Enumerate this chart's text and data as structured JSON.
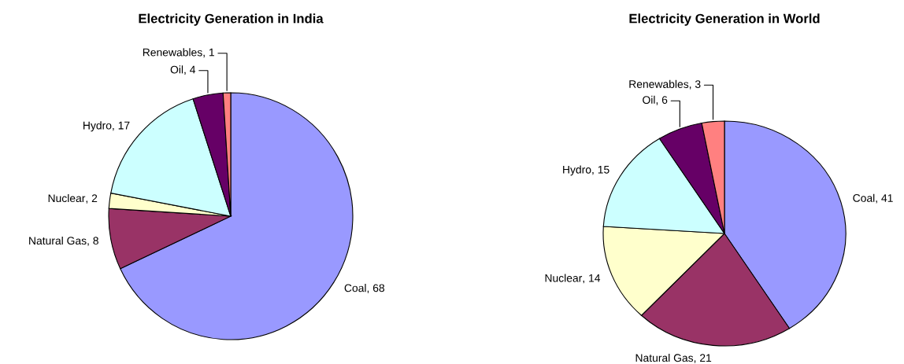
{
  "chart_data": [
    {
      "type": "pie",
      "title": "Electricity Generation in India",
      "categories": [
        "Coal",
        "Natural Gas",
        "Nuclear",
        "Hydro",
        "Oil",
        "Renewables"
      ],
      "values": [
        68,
        8,
        2,
        17,
        4,
        1
      ],
      "colors": [
        "#9999ff",
        "#993366",
        "#ffffcc",
        "#ccffff",
        "#660066",
        "#ff8080"
      ],
      "value_labels": [
        ", 68",
        ", 8",
        ", 2",
        ", 17",
        ", 4",
        ", 1"
      ]
    },
    {
      "type": "pie",
      "title": "Electricity Generation in World",
      "categories": [
        "Coal",
        "Natural Gas",
        "Nuclear",
        "Hydro",
        "Oil",
        "Renewables"
      ],
      "values": [
        41,
        21,
        14,
        15,
        6,
        3
      ],
      "colors": [
        "#9999ff",
        "#993366",
        "#ffffcc",
        "#ccffff",
        "#660066",
        "#ff8080"
      ],
      "value_labels": [
        ", 41",
        ", 21",
        ", 14",
        ", 15",
        ", 6",
        ", 3"
      ]
    }
  ]
}
